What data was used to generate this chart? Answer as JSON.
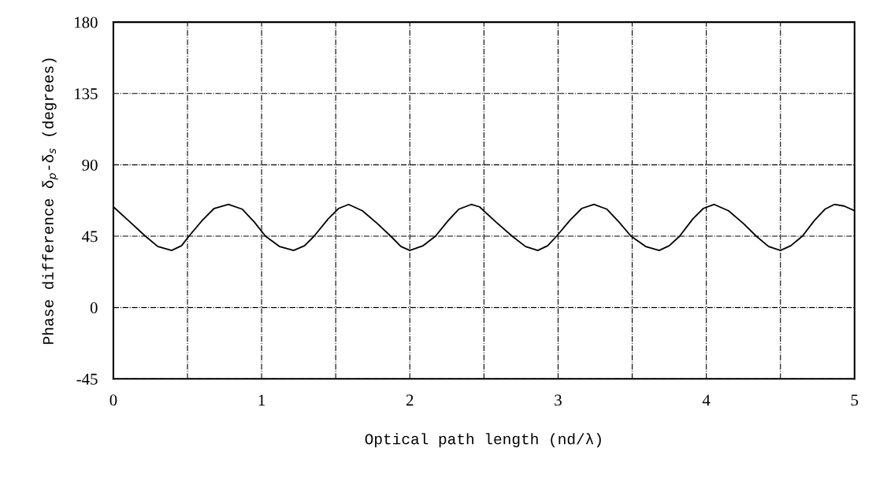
{
  "chart_data": {
    "type": "line",
    "xlabel": "Optical path length (nd/λ)",
    "ylabel": "Phase difference δ$_{p}$-δ$_{s}$ (degrees)",
    "x": [
      0,
      0.1,
      0.216,
      0.3,
      0.393,
      0.46,
      0.51,
      0.6,
      0.68,
      0.776,
      0.87,
      0.95,
      1.026,
      1.12,
      1.216,
      1.29,
      1.354,
      1.45,
      1.52,
      1.587,
      1.68,
      1.78,
      1.871,
      1.94,
      2.0,
      2.09,
      2.173,
      2.26,
      2.33,
      2.414,
      2.47,
      2.58,
      2.69,
      2.78,
      2.863,
      2.93,
      2.99,
      3.08,
      3.16,
      3.242,
      3.33,
      3.41,
      3.492,
      3.59,
      3.682,
      3.75,
      3.82,
      3.91,
      3.98,
      4.053,
      4.15,
      4.25,
      4.337,
      4.42,
      4.5,
      4.57,
      4.648,
      4.73,
      4.8,
      4.863,
      4.93,
      5.0
    ],
    "series": [
      {
        "color": "#000000",
        "values": [
          63.5,
          55,
          45,
          38.5,
          36,
          39,
          45,
          55,
          62.5,
          65,
          62,
          54,
          45,
          38.5,
          36,
          39,
          45,
          56,
          62.5,
          65,
          61,
          53,
          45,
          38.5,
          36,
          39,
          45,
          55,
          62,
          65,
          63.5,
          54,
          45,
          38.5,
          36,
          39,
          45,
          55,
          62.5,
          65,
          62,
          54,
          45,
          38.5,
          36,
          39,
          45,
          56,
          62.5,
          65,
          61,
          53,
          45,
          38.5,
          36,
          39,
          45,
          55,
          62,
          65,
          64,
          61
        ]
      }
    ],
    "xlim": [
      0,
      5
    ],
    "xticks": [
      0,
      {
        "value": 0.5,
        "label": null
      },
      1,
      {
        "value": 1.5,
        "label": null
      },
      2,
      {
        "value": 2.5,
        "label": null
      },
      3,
      {
        "value": 3.5,
        "label": null
      },
      4,
      {
        "value": 4.5,
        "label": null
      },
      5
    ],
    "ylim": [
      -45,
      180
    ],
    "yticks": [
      -45,
      0,
      45,
      90,
      135,
      180
    ],
    "grid": true,
    "marker": "none",
    "line_style": "solid"
  }
}
